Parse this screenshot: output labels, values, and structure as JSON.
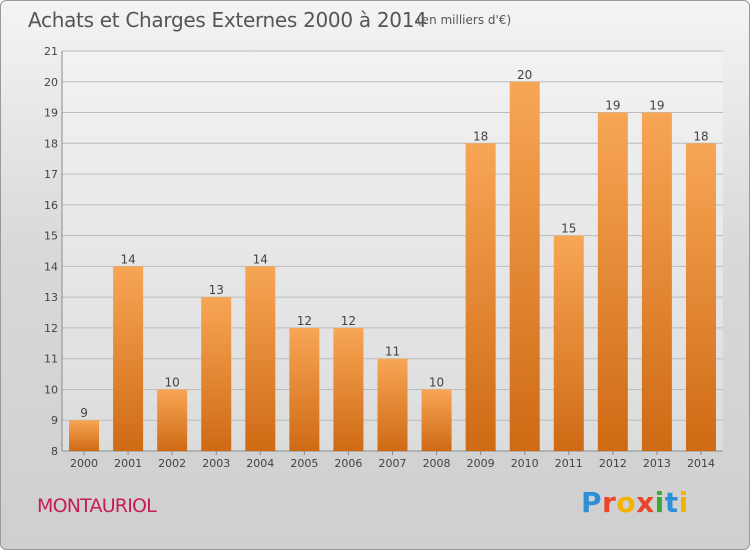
{
  "header": {
    "title": "Achats et Charges Externes 2000 à 2014",
    "subtitle": "(en milliers d'€)"
  },
  "footer": {
    "place": "MONTAURIOL",
    "logo_text": "Proxiti"
  },
  "colors": {
    "bar_top": "#f7a655",
    "bar_bottom": "#cf6a14",
    "grid": "#bcbcbc",
    "title": "#555555",
    "place": "#c61d5a"
  },
  "chart_data": {
    "type": "bar",
    "title": "Achats et Charges Externes 2000 à 2014",
    "subtitle": "(en milliers d'€)",
    "xlabel": "",
    "ylabel": "",
    "ylim": [
      8,
      21
    ],
    "yticks": [
      8,
      9,
      10,
      11,
      12,
      13,
      14,
      15,
      16,
      17,
      18,
      19,
      20,
      21
    ],
    "grid": true,
    "categories": [
      "2000",
      "2001",
      "2002",
      "2003",
      "2004",
      "2005",
      "2006",
      "2007",
      "2008",
      "2009",
      "2010",
      "2011",
      "2012",
      "2013",
      "2014"
    ],
    "values": [
      9,
      14,
      10,
      13,
      14,
      12,
      12,
      11,
      10,
      18,
      20,
      15,
      19,
      19,
      18
    ]
  }
}
